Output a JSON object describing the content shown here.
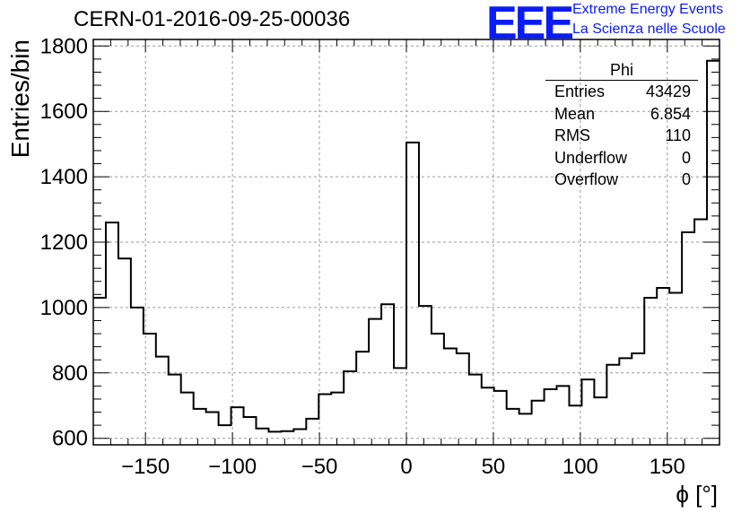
{
  "chart_data": {
    "type": "histogram",
    "title": "CERN-01-2016-09-25-00036",
    "xlabel": "ϕ [°]",
    "ylabel": "Entries/bin",
    "xlim": [
      -180,
      180
    ],
    "ylim": [
      580,
      1820
    ],
    "bin_width": 7.2,
    "x_ticks": [
      -150,
      -100,
      -50,
      0,
      50,
      100,
      150
    ],
    "x_tick_labels": [
      "−150",
      "−100",
      "−50",
      "0",
      "50",
      "100",
      "150"
    ],
    "y_ticks": [
      600,
      800,
      1000,
      1200,
      1400,
      1600,
      1800
    ],
    "y_tick_labels": [
      "600",
      "800",
      "1000",
      "1200",
      "1400",
      "1600",
      "1800"
    ],
    "grid": true,
    "values": [
      1030,
      1260,
      1150,
      1000,
      920,
      850,
      795,
      740,
      690,
      680,
      640,
      695,
      665,
      630,
      620,
      622,
      628,
      660,
      735,
      740,
      805,
      865,
      965,
      1010,
      815,
      1505,
      1005,
      920,
      875,
      860,
      795,
      755,
      745,
      690,
      675,
      715,
      750,
      760,
      700,
      780,
      725,
      825,
      845,
      860,
      1030,
      1060,
      1045,
      1230,
      1270,
      1755
    ],
    "stats": {
      "title": "Phi",
      "rows": [
        {
          "label": "Entries",
          "value": "43429"
        },
        {
          "label": "Mean",
          "value": "6.854"
        },
        {
          "label": "RMS",
          "value": "110"
        },
        {
          "label": "Underflow",
          "value": "0"
        },
        {
          "label": "Overflow",
          "value": "0"
        }
      ]
    }
  },
  "logo": {
    "mark": "EEE",
    "line1": "Extreme Energy Events",
    "line2": "La Scienza nelle Scuole",
    "color": "#0a1cf5"
  }
}
